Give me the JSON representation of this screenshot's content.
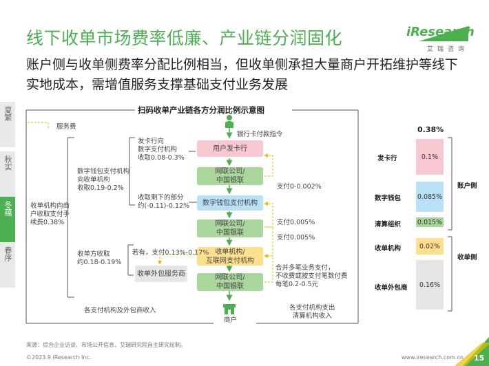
{
  "header": {
    "title": "线下收单市场费率低廉、产业链分润固化",
    "subtitle": "账户侧与收单侧费率分配比例相当，但收单侧承担大量商户开拓维护等线下实地成本，需增值服务支撑基础支付业务发展"
  },
  "logo": {
    "brand": "iResearch",
    "cn": "艾瑞咨询"
  },
  "side_tabs": [
    {
      "label": "夏繁",
      "active": false
    },
    {
      "label": "秋实",
      "active": false
    },
    {
      "label": "冬蕴",
      "active": true
    },
    {
      "label": "春序",
      "active": false
    }
  ],
  "diagram": {
    "title": "扫码收单产业链各方分润比例示意图",
    "legend_label": "服务费",
    "top_label": "银行卡付款指令",
    "nodes": {
      "user_bank": "用户发卡行",
      "unionpay1": "网联公司/\n中国银联",
      "wallet": "数字钱包支付机构",
      "unionpay2": "网联公司/\n中国银联",
      "acquirer": "收单机构/\n互联网支付机构",
      "unionpay3": "网联公司/\n中国银联",
      "outsourcer": "收单外包服务商",
      "merchant": "商户"
    },
    "left_texts": {
      "issuer_fee": "发卡行向\n数字支付机构\n收取0.08-0.3%",
      "wallet_fee": "数字钱包支付机构\n向收单机构\n收取0.19-0.2%",
      "acq_fee": "收单机构向商\n户收取支付手\n续费0.38%",
      "remain_fee": "收取剩下的部分\n约(-0.11)-0.12%",
      "acq_side_fee": "收单方收取\n约0.18-0.19%",
      "outsource_note": "若有，支付0.13%-0.17%"
    },
    "right_texts": {
      "pay1": "支付0-0.002%",
      "pay2": "支付0.005%",
      "pay3": "支付0.005%",
      "batch": "合并多笔业务支付，\n不收费或按支付笔数付费\n每笔0.2-0.5元"
    },
    "bottom_left": "各支付机构及外包商收入",
    "bottom_right": "各支付机构支出\n清算机构收入"
  },
  "ratio_panel": {
    "total": "0.38%",
    "items": [
      {
        "name": "发卡行",
        "value": "0.1%",
        "color": "#f8c8d0"
      },
      {
        "name": "数字钱包",
        "value": "0.085%",
        "color": "#b9e0f5"
      },
      {
        "name": "清算组织",
        "value": "0.015%",
        "color": "#a8d69b"
      },
      {
        "name": "收单机构",
        "value": "0.02%",
        "color": "#fde08e"
      },
      {
        "name": "收单外包商",
        "value": "0.16%",
        "color": "#e6e6e6"
      }
    ],
    "group_account": "账户侧",
    "group_acquire": "收单侧"
  },
  "footer": {
    "source": "来源：综合企业访谈、市场公开信息，艾瑞研究院自主研究绘制。",
    "copyright": "©2023.9 iResearch Inc.",
    "website": "www.iresearch.com.cn",
    "page": "15"
  }
}
